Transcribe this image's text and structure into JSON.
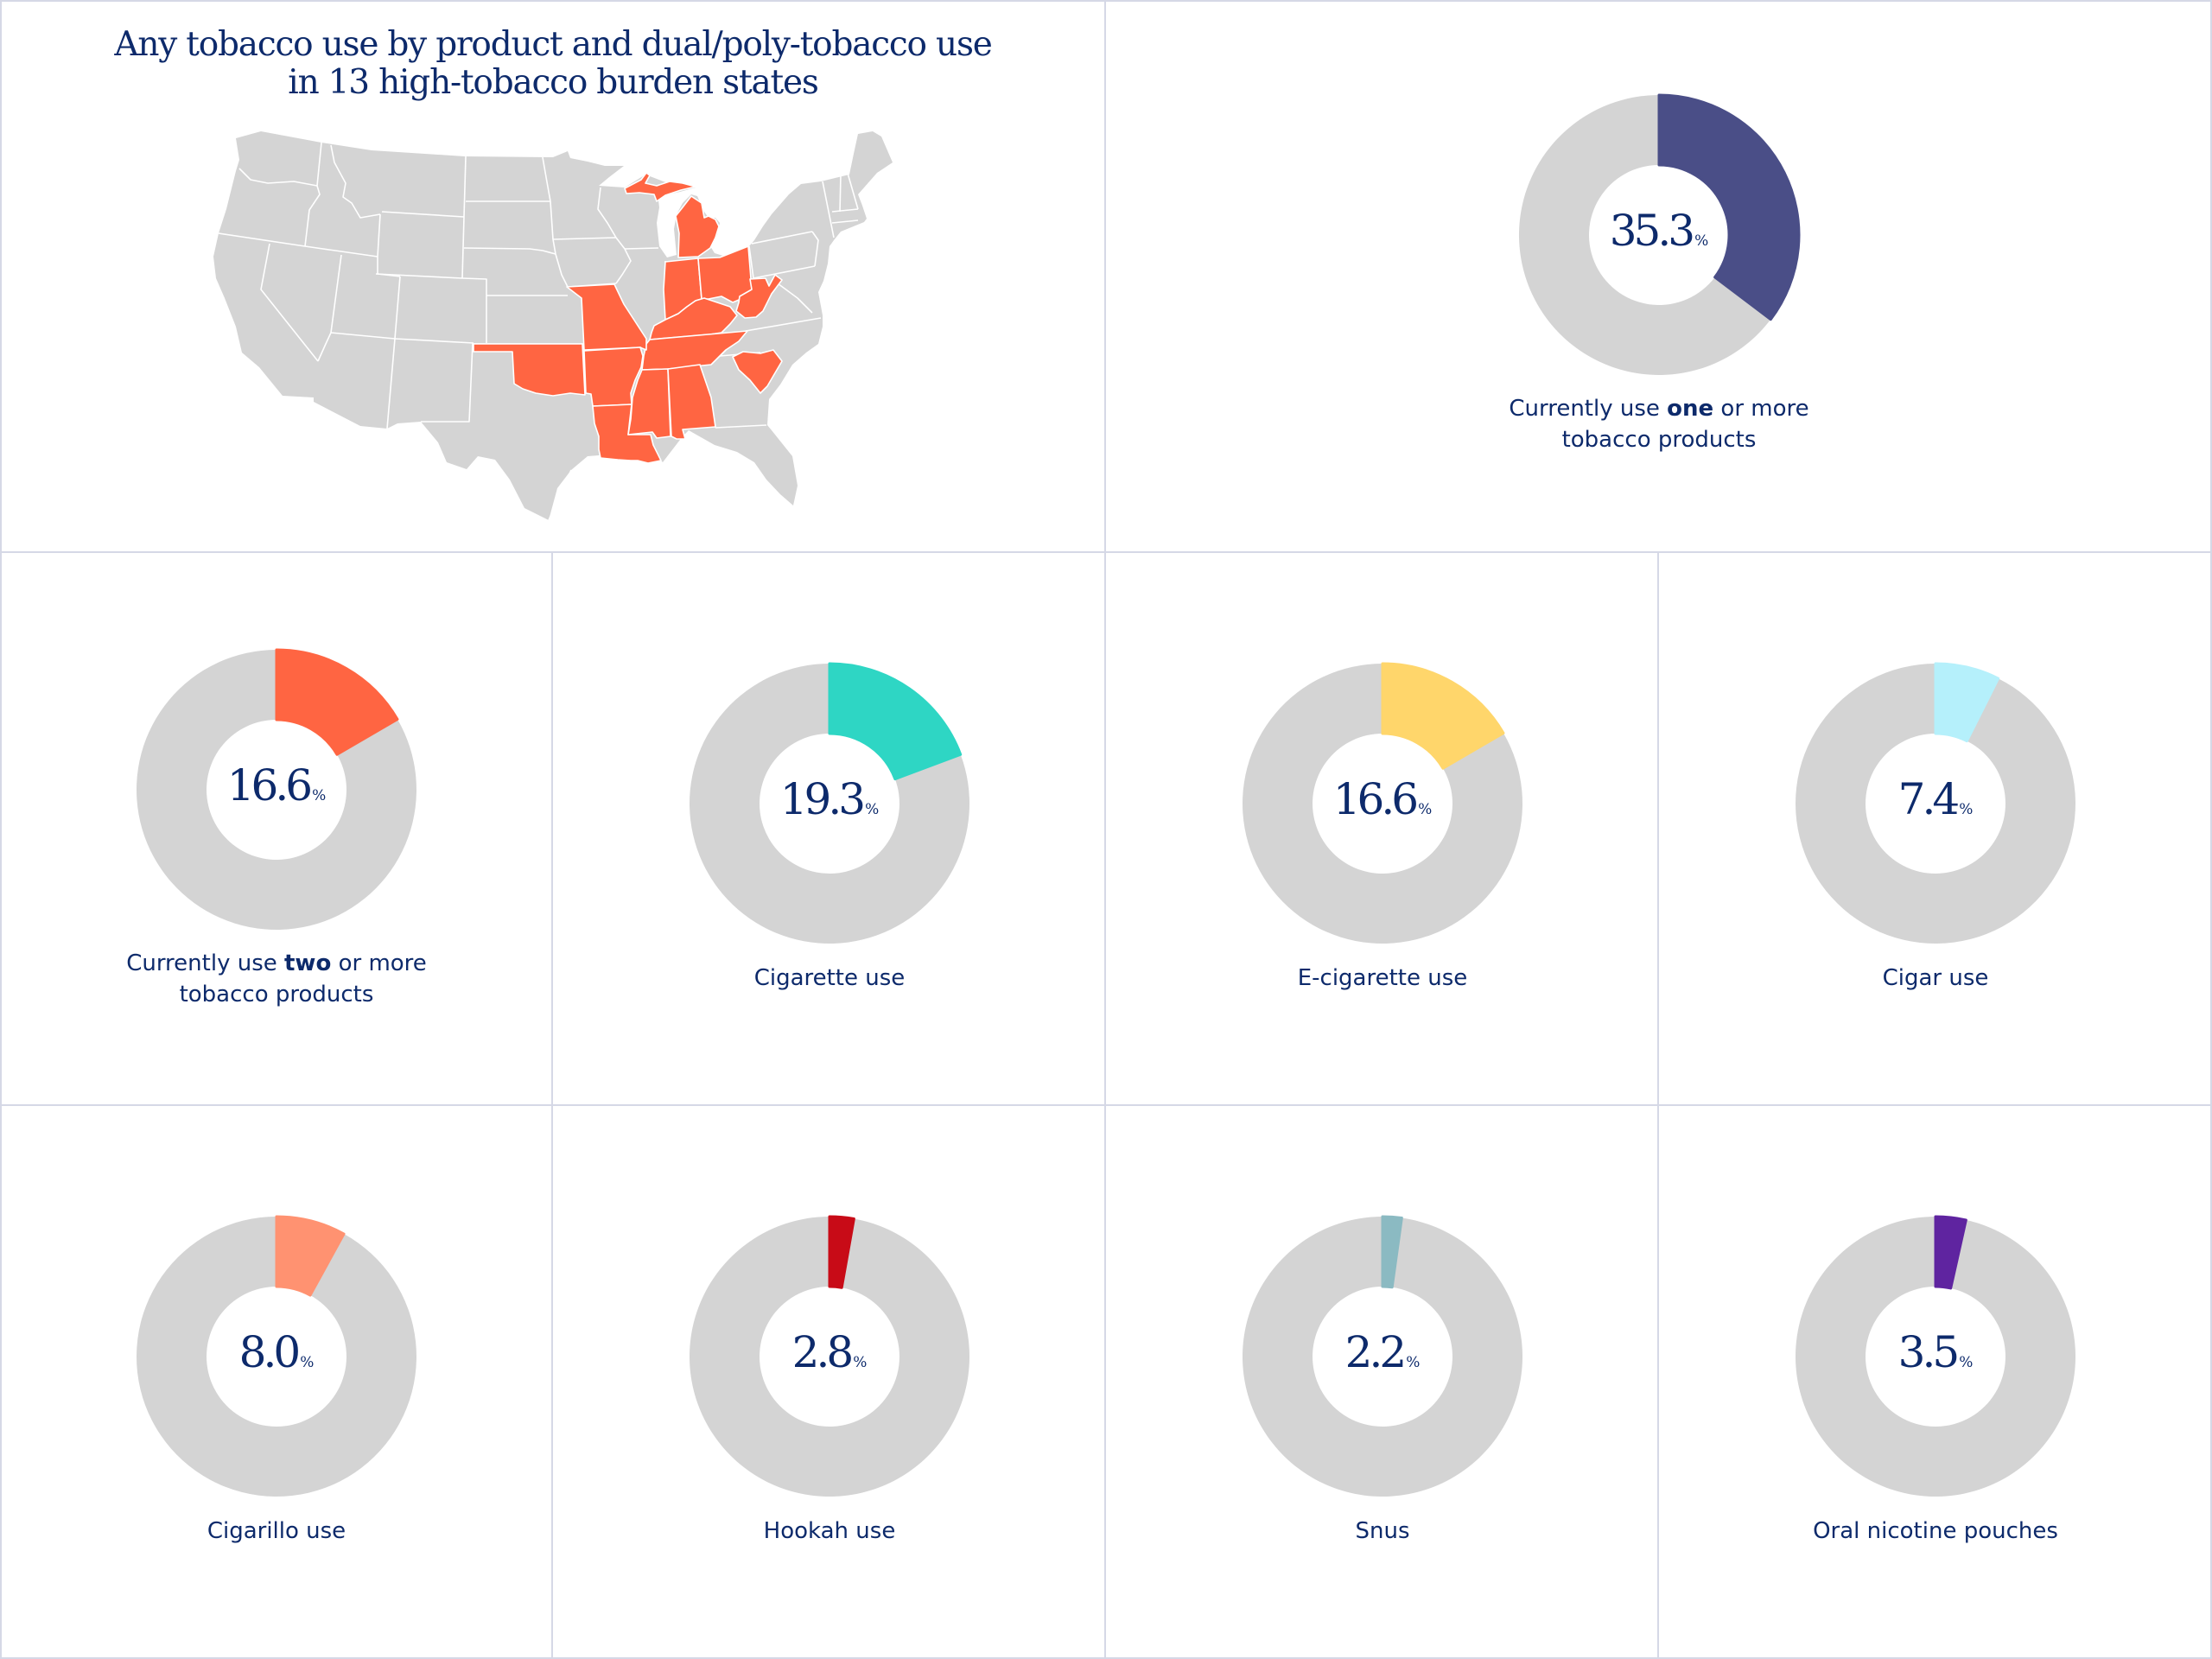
{
  "title": {
    "line1": "Any tobacco use by product and dual/poly-tobacco use",
    "line2": "in 13 high-tobacco burden states"
  },
  "map": {
    "highlight_color": "#ff6542",
    "base_color": "#d4d4d4",
    "highlighted_states": [
      "Michigan",
      "Indiana",
      "Ohio",
      "West Virginia",
      "Kentucky",
      "Tennessee",
      "Missouri",
      "Oklahoma",
      "Arkansas",
      "Louisiana",
      "Mississippi",
      "Alabama",
      "South Carolina"
    ]
  },
  "chart_data": [
    {
      "type": "pie",
      "id": "one-or-more",
      "value": 35.3,
      "unit": "%",
      "label_pre": "Currently use ",
      "label_bold": "one",
      "label_post": " or more tobacco products",
      "color": "#4a4e87"
    },
    {
      "type": "pie",
      "id": "two-or-more",
      "value": 16.6,
      "unit": "%",
      "label_pre": "Currently use ",
      "label_bold": "two",
      "label_post": " or more tobacco products",
      "color": "#ff6542"
    },
    {
      "type": "pie",
      "id": "cigarette",
      "value": 19.3,
      "unit": "%",
      "label_pre": "Cigarette use",
      "label_bold": "",
      "label_post": "",
      "color": "#2ed6c4"
    },
    {
      "type": "pie",
      "id": "e-cigarette",
      "value": 16.6,
      "unit": "%",
      "label_pre": "E-cigarette use",
      "label_bold": "",
      "label_post": "",
      "color": "#ffd66b"
    },
    {
      "type": "pie",
      "id": "cigar",
      "value": 7.4,
      "unit": "%",
      "label_pre": "Cigar use",
      "label_bold": "",
      "label_post": "",
      "color": "#b5f0fb"
    },
    {
      "type": "pie",
      "id": "cigarillo",
      "value": 8.0,
      "unit": "%",
      "label_pre": "Cigarillo use",
      "label_bold": "",
      "label_post": "",
      "color": "#ff9271"
    },
    {
      "type": "pie",
      "id": "hookah",
      "value": 2.8,
      "unit": "%",
      "label_pre": "Hookah use",
      "label_bold": "",
      "label_post": "",
      "color": "#c80b17"
    },
    {
      "type": "pie",
      "id": "snus",
      "value": 2.2,
      "unit": "%",
      "label_pre": "Snus",
      "label_bold": "",
      "label_post": "",
      "color": "#8bbac2"
    },
    {
      "type": "pie",
      "id": "oral-nicotine-pouches",
      "value": 3.5,
      "unit": "%",
      "label_pre": "Oral nicotine pouches",
      "label_bold": "",
      "label_post": "",
      "color": "#5f24a0"
    }
  ],
  "donut_remainder_color": "#d4d4d4",
  "value_display": [
    "35.3",
    "16.6",
    "19.3",
    "16.6",
    "7.4",
    "8.0",
    "2.8",
    "2.2",
    "3.5"
  ]
}
